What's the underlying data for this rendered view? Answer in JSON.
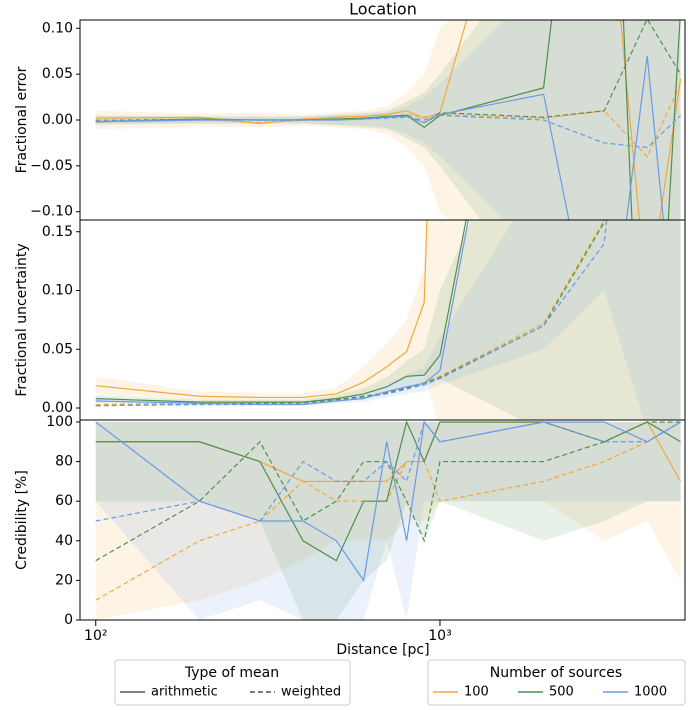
{
  "chart_data": {
    "type": "line",
    "title": "Location",
    "xlabel": "Distance [pc]",
    "log_x": true,
    "x": [
      100,
      200,
      300,
      400,
      500,
      600,
      700,
      800,
      900,
      1000,
      2000,
      3000,
      4000,
      5000
    ],
    "xlim": [
      90,
      5150
    ],
    "xticks": [
      {
        "value": 100,
        "label": "10²"
      },
      {
        "value": 1000,
        "label": "10³"
      }
    ],
    "panels": [
      {
        "ylabel": "Fractional error",
        "ylim": [
          -0.109,
          0.109
        ],
        "yticks": [
          {
            "value": -0.1,
            "label": "−0.10"
          },
          {
            "value": -0.05,
            "label": "−0.05"
          },
          {
            "value": 0,
            "label": "0.00"
          },
          {
            "value": 0.05,
            "label": "0.05"
          },
          {
            "value": 0.1,
            "label": "0.10"
          }
        ],
        "series": [
          {
            "arithmetic": [
              0.002,
              0.003,
              -0.004,
              0.001,
              0.003,
              0.004,
              0.006,
              0.01,
              0.002,
              0.008,
              0.4,
              0.3,
              -0.2,
              0.045
            ],
            "weighted": [
              0.0,
              0.001,
              -0.003,
              0.0,
              0.001,
              0.002,
              0.003,
              0.006,
              0.003,
              0.006,
              0.002,
              0.01,
              -0.04,
              0.04
            ],
            "lower": [
              -0.01,
              -0.007,
              -0.008,
              -0.006,
              -0.008,
              -0.01,
              -0.015,
              -0.03,
              -0.05,
              -0.1,
              -0.2,
              -0.2,
              -0.2,
              -0.2
            ],
            "upper": [
              0.01,
              0.007,
              0.008,
              0.006,
              0.008,
              0.01,
              0.015,
              0.03,
              0.05,
              0.1,
              0.2,
              0.2,
              0.2,
              0.2
            ]
          },
          {
            "arithmetic": [
              -0.002,
              0.001,
              0.0,
              0.0,
              0.001,
              0.002,
              0.004,
              0.005,
              -0.008,
              0.005,
              0.035,
              0.6,
              -0.5,
              0.12
            ],
            "weighted": [
              -0.001,
              0.001,
              0.0,
              0.0,
              0.001,
              0.002,
              0.003,
              0.005,
              -0.003,
              0.008,
              0.003,
              0.01,
              0.11,
              0.05
            ],
            "lower": [
              -0.005,
              -0.004,
              -0.004,
              -0.004,
              -0.006,
              -0.008,
              -0.01,
              -0.02,
              -0.03,
              -0.05,
              -0.2,
              -0.2,
              -0.2,
              -0.2
            ],
            "upper": [
              0.005,
              0.004,
              0.004,
              0.004,
              0.006,
              0.008,
              0.01,
              0.02,
              0.03,
              0.05,
              0.2,
              0.2,
              0.2,
              0.2
            ]
          },
          {
            "arithmetic": [
              -0.002,
              0.0,
              0.0,
              0.0,
              0.0,
              0.001,
              0.003,
              0.004,
              -0.003,
              0.006,
              0.028,
              -0.3,
              0.07,
              -0.3
            ],
            "weighted": [
              -0.001,
              0.0,
              0.0,
              0.0,
              0.0,
              0.001,
              0.002,
              0.003,
              0.0,
              0.005,
              0.0,
              -0.025,
              -0.03,
              0.005
            ],
            "lower": [
              -0.004,
              -0.003,
              -0.003,
              -0.003,
              -0.005,
              -0.006,
              -0.008,
              -0.015,
              -0.025,
              -0.04,
              -0.15,
              -0.2,
              -0.2,
              -0.2
            ],
            "upper": [
              0.004,
              0.003,
              0.003,
              0.003,
              0.005,
              0.006,
              0.008,
              0.015,
              0.025,
              0.04,
              0.15,
              0.2,
              0.2,
              0.2
            ]
          }
        ]
      },
      {
        "ylabel": "Fractional uncertainty",
        "ylim": [
          -0.0102,
          0.16
        ],
        "yticks": [
          {
            "value": 0,
            "label": "0.00"
          },
          {
            "value": 0.05,
            "label": "0.05"
          },
          {
            "value": 0.1,
            "label": "0.10"
          },
          {
            "value": 0.15,
            "label": "0.15"
          }
        ],
        "series": [
          {
            "arithmetic": [
              0.019,
              0.01,
              0.009,
              0.009,
              0.012,
              0.022,
              0.035,
              0.048,
              0.09,
              0.5,
              0.5,
              0.5,
              0.5,
              0.5
            ],
            "weighted": [
              0.003,
              0.004,
              0.004,
              0.005,
              0.007,
              0.01,
              0.013,
              0.017,
              0.022,
              0.027,
              0.072,
              0.16,
              0.5,
              0.5
            ],
            "lower": [
              0.012,
              0.006,
              0.005,
              0.005,
              0.007,
              0.012,
              0.02,
              0.025,
              0.03,
              -0.02,
              -0.02,
              -0.02,
              -0.02,
              -0.02
            ],
            "upper": [
              0.027,
              0.014,
              0.013,
              0.013,
              0.017,
              0.035,
              0.055,
              0.075,
              0.12,
              0.3,
              0.3,
              0.3,
              0.3,
              0.3
            ]
          },
          {
            "arithmetic": [
              0.008,
              0.005,
              0.005,
              0.005,
              0.008,
              0.012,
              0.018,
              0.027,
              0.028,
              0.045,
              0.5,
              0.5,
              0.5,
              0.5
            ],
            "weighted": [
              0.002,
              0.003,
              0.004,
              0.005,
              0.007,
              0.01,
              0.013,
              0.017,
              0.021,
              0.026,
              0.07,
              0.158,
              0.5,
              0.5
            ],
            "lower": [
              0.005,
              0.003,
              0.003,
              0.003,
              0.005,
              0.008,
              0.012,
              0.018,
              0.018,
              0.025,
              -0.02,
              -0.02,
              -0.02,
              -0.02
            ],
            "upper": [
              0.011,
              0.007,
              0.007,
              0.007,
              0.011,
              0.017,
              0.026,
              0.04,
              0.05,
              0.1,
              0.3,
              0.3,
              0.3,
              0.3
            ]
          },
          {
            "arithmetic": [
              0.006,
              0.004,
              0.003,
              0.003,
              0.006,
              0.008,
              0.014,
              0.018,
              0.021,
              0.032,
              0.5,
              0.5,
              0.5,
              0.5
            ],
            "weighted": [
              0.002,
              0.003,
              0.003,
              0.004,
              0.006,
              0.009,
              0.012,
              0.016,
              0.02,
              0.025,
              0.07,
              0.14,
              0.5,
              0.5
            ],
            "lower": [
              0.004,
              0.002,
              0.002,
              0.002,
              0.004,
              0.005,
              0.009,
              0.012,
              0.014,
              0.02,
              0.05,
              0.1,
              -0.02,
              -0.02
            ],
            "upper": [
              0.008,
              0.006,
              0.005,
              0.005,
              0.008,
              0.012,
              0.02,
              0.028,
              0.035,
              0.06,
              0.2,
              0.3,
              0.3,
              0.3
            ]
          }
        ]
      },
      {
        "ylabel": "Credibility [%]",
        "ylim": [
          0,
          101
        ],
        "yticks": [
          0,
          20,
          40,
          60,
          80,
          100
        ],
        "series": [
          {
            "arithmetic": [
              90,
              90,
              80,
              70,
              70,
              70,
              70,
              80,
              80,
              100,
              100,
              90,
              100,
              70
            ],
            "weighted": [
              10,
              40,
              50,
              70,
              60,
              60,
              60,
              80,
              80,
              60,
              70,
              80,
              90,
              100
            ],
            "lower": [
              0,
              10,
              20,
              30,
              40,
              40,
              40,
              50,
              50,
              60,
              60,
              40,
              50,
              20
            ],
            "upper": [
              100,
              100,
              100,
              100,
              100,
              100,
              100,
              100,
              100,
              100,
              100,
              100,
              100,
              100
            ]
          },
          {
            "arithmetic": [
              90,
              90,
              80,
              40,
              30,
              60,
              60,
              100,
              80,
              100,
              100,
              90,
              100,
              90
            ],
            "weighted": [
              30,
              60,
              90,
              50,
              60,
              80,
              80,
              60,
              40,
              80,
              80,
              90,
              100,
              100
            ],
            "lower": [
              60,
              60,
              50,
              0,
              0,
              20,
              30,
              60,
              40,
              60,
              40,
              50,
              60,
              60
            ],
            "upper": [
              100,
              100,
              100,
              100,
              100,
              100,
              100,
              100,
              100,
              100,
              100,
              100,
              100,
              100
            ]
          },
          {
            "arithmetic": [
              100,
              60,
              50,
              50,
              40,
              20,
              90,
              40,
              100,
              90,
              100,
              100,
              90,
              100
            ],
            "weighted": [
              50,
              60,
              50,
              80,
              70,
              70,
              80,
              70,
              100,
              90,
              100,
              90,
              90,
              100
            ],
            "lower": [
              60,
              0,
              10,
              0,
              0,
              0,
              40,
              0,
              60,
              60,
              60,
              60,
              60,
              60
            ],
            "upper": [
              100,
              100,
              100,
              100,
              100,
              100,
              100,
              100,
              100,
              100,
              100,
              100,
              100,
              100
            ]
          }
        ]
      }
    ],
    "legend_mean": {
      "title": "Type of mean",
      "entries": [
        {
          "label": "arithmetic",
          "dashed": false
        },
        {
          "label": "weighted",
          "dashed": true
        }
      ]
    },
    "legend_sources": {
      "title": "Number of sources",
      "entries": [
        {
          "label": "100",
          "color": "#f2a93b"
        },
        {
          "label": "500",
          "color": "#4f8f4f"
        },
        {
          "label": "1000",
          "color": "#6a9be8"
        }
      ]
    }
  }
}
